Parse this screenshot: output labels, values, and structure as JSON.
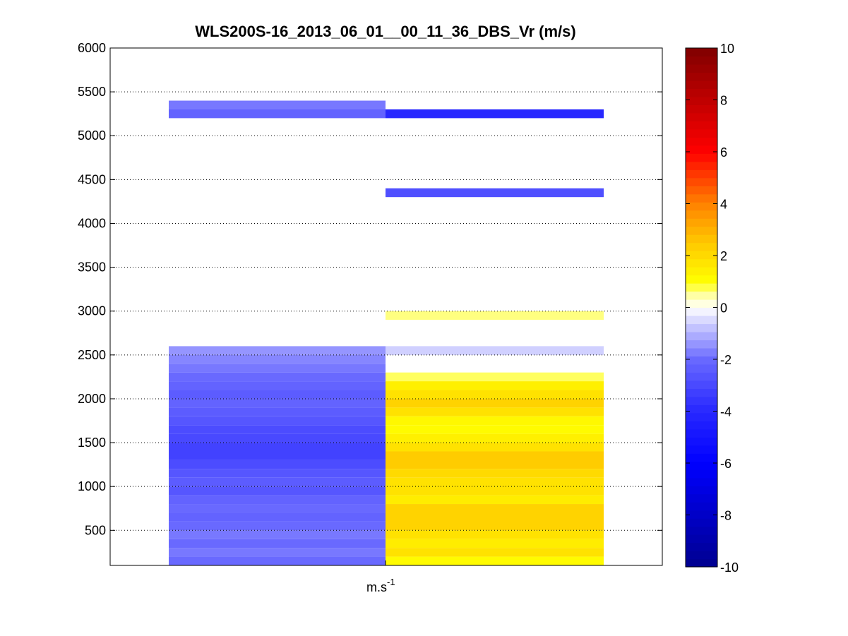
{
  "chart_data": {
    "type": "heatmap",
    "title": "WLS200S-16_2013_06_01__00_11_36_DBS_Vr (m/s)",
    "xlabel": {
      "base": "m.s",
      "sup": "-1"
    },
    "ylabel": "",
    "ylim": [
      100,
      6000
    ],
    "yticks": [
      500,
      1000,
      1500,
      2000,
      2500,
      3000,
      3500,
      4000,
      4500,
      5000,
      5500,
      6000
    ],
    "grid": "horizontal dotted",
    "colorbar": {
      "colormap": "jet-like (blue-white-yellow-red)",
      "lim": [
        -10,
        10
      ],
      "ticks": [
        -10,
        -8,
        -6,
        -4,
        -2,
        0,
        2,
        4,
        6,
        8,
        10
      ]
    },
    "columns": 2,
    "cells": [
      {
        "col": 0,
        "y0": 5300,
        "y1": 5400,
        "v": -1.8
      },
      {
        "col": 0,
        "y0": 5200,
        "y1": 5300,
        "v": -2.2
      },
      {
        "col": 1,
        "y0": 5200,
        "y1": 5300,
        "v": -4.0
      },
      {
        "col": 1,
        "y0": 4300,
        "y1": 4400,
        "v": -2.8
      },
      {
        "col": 1,
        "y0": 2900,
        "y1": 3000,
        "v": 0.6
      },
      {
        "col": 1,
        "y0": 2500,
        "y1": 2600,
        "v": -0.6
      },
      {
        "col": 1,
        "y0": 2200,
        "y1": 2300,
        "v": 0.7
      },
      {
        "col": 1,
        "y0": 2100,
        "y1": 2200,
        "v": 1.4
      },
      {
        "col": 1,
        "y0": 2000,
        "y1": 2100,
        "v": 1.8
      },
      {
        "col": 1,
        "y0": 1900,
        "y1": 2000,
        "v": 2.2
      },
      {
        "col": 1,
        "y0": 1800,
        "y1": 1900,
        "v": 1.8
      },
      {
        "col": 1,
        "y0": 1700,
        "y1": 1800,
        "v": 1.2
      },
      {
        "col": 1,
        "y0": 1600,
        "y1": 1700,
        "v": 1.1
      },
      {
        "col": 1,
        "y0": 1500,
        "y1": 1600,
        "v": 1.4
      },
      {
        "col": 1,
        "y0": 1400,
        "y1": 1500,
        "v": 1.8
      },
      {
        "col": 1,
        "y0": 1200,
        "y1": 1400,
        "v": 2.4
      },
      {
        "col": 1,
        "y0": 1100,
        "y1": 1200,
        "v": 2.0
      },
      {
        "col": 1,
        "y0": 900,
        "y1": 1100,
        "v": 1.8
      },
      {
        "col": 1,
        "y0": 800,
        "y1": 900,
        "v": 1.5
      },
      {
        "col": 1,
        "y0": 500,
        "y1": 800,
        "v": 2.2
      },
      {
        "col": 1,
        "y0": 400,
        "y1": 500,
        "v": 1.8
      },
      {
        "col": 1,
        "y0": 300,
        "y1": 400,
        "v": 1.5
      },
      {
        "col": 1,
        "y0": 200,
        "y1": 300,
        "v": 1.8
      },
      {
        "col": 1,
        "y0": 100,
        "y1": 200,
        "v": 1.1
      },
      {
        "col": 0,
        "y0": 2500,
        "y1": 2600,
        "v": -1.4
      },
      {
        "col": 0,
        "y0": 2400,
        "y1": 2500,
        "v": -1.6
      },
      {
        "col": 0,
        "y0": 2300,
        "y1": 2400,
        "v": -1.8
      },
      {
        "col": 0,
        "y0": 2200,
        "y1": 2300,
        "v": -2.0
      },
      {
        "col": 0,
        "y0": 2100,
        "y1": 2200,
        "v": -2.2
      },
      {
        "col": 0,
        "y0": 2000,
        "y1": 2100,
        "v": -2.4
      },
      {
        "col": 0,
        "y0": 1900,
        "y1": 2000,
        "v": -2.2
      },
      {
        "col": 0,
        "y0": 1800,
        "y1": 1900,
        "v": -2.4
      },
      {
        "col": 0,
        "y0": 1700,
        "y1": 1800,
        "v": -2.6
      },
      {
        "col": 0,
        "y0": 1600,
        "y1": 1700,
        "v": -2.9
      },
      {
        "col": 0,
        "y0": 1500,
        "y1": 1600,
        "v": -3.0
      },
      {
        "col": 0,
        "y0": 1300,
        "y1": 1500,
        "v": -3.2
      },
      {
        "col": 0,
        "y0": 1200,
        "y1": 1300,
        "v": -2.9
      },
      {
        "col": 0,
        "y0": 1100,
        "y1": 1200,
        "v": -2.6
      },
      {
        "col": 0,
        "y0": 1000,
        "y1": 1100,
        "v": -2.4
      },
      {
        "col": 0,
        "y0": 900,
        "y1": 1000,
        "v": -2.6
      },
      {
        "col": 0,
        "y0": 800,
        "y1": 900,
        "v": -2.2
      },
      {
        "col": 0,
        "y0": 700,
        "y1": 800,
        "v": -2.0
      },
      {
        "col": 0,
        "y0": 600,
        "y1": 700,
        "v": -2.2
      },
      {
        "col": 0,
        "y0": 500,
        "y1": 600,
        "v": -2.0
      },
      {
        "col": 0,
        "y0": 400,
        "y1": 500,
        "v": -1.8
      },
      {
        "col": 0,
        "y0": 300,
        "y1": 400,
        "v": -2.0
      },
      {
        "col": 0,
        "y0": 200,
        "y1": 300,
        "v": -1.8
      },
      {
        "col": 0,
        "y0": 100,
        "y1": 200,
        "v": -2.0
      }
    ]
  }
}
